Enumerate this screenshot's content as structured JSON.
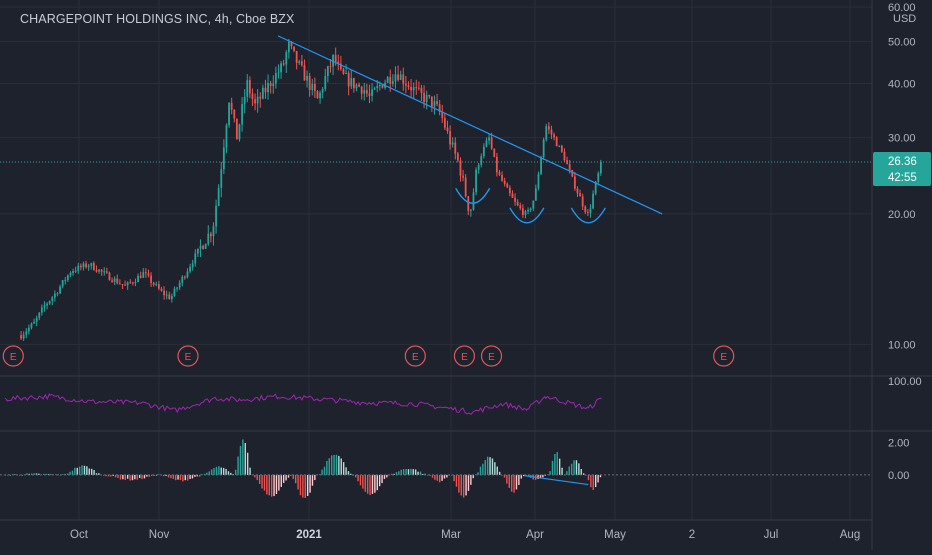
{
  "header": {
    "title": "CHARGEPOINT HOLDINGS INC, 4h, Cboe BZX",
    "currency": "USD"
  },
  "price_badge": {
    "price": "26.36",
    "countdown": "42:55"
  },
  "colors": {
    "background": "#1e222d",
    "grid": "#2a2e39",
    "bull": "#26a69a",
    "bear": "#ef5350",
    "trendline": "#2196f3",
    "rsi": "#9c27b0",
    "earnings": "#e0555a",
    "text": "#b2b5be",
    "badge": "#26a69a"
  },
  "chart_data": [
    {
      "type": "candlestick",
      "panel": "price",
      "y_scale": "log",
      "ylim": [
        8.5,
        61
      ],
      "y_ticks": [
        "60.00",
        "50.00",
        "40.00",
        "30.00",
        "20.00",
        "10.00"
      ],
      "y_tick_values": [
        60,
        50,
        40,
        30,
        20,
        10
      ],
      "x_ticks": [
        "Oct",
        "Nov",
        "2021",
        "Mar",
        "Apr",
        "May",
        "2",
        "Jul",
        "Aug"
      ],
      "last_price": 26.36,
      "price_path": [
        [
          "2020-09-09",
          10.5
        ],
        [
          "2020-09-14",
          11.2
        ],
        [
          "2020-09-18",
          12.3
        ],
        [
          "2020-09-22",
          13.1
        ],
        [
          "2020-09-28",
          14.8
        ],
        [
          "2020-10-05",
          15.3
        ],
        [
          "2020-10-12",
          14.4
        ],
        [
          "2020-10-19",
          13.6
        ],
        [
          "2020-10-26",
          14.6
        ],
        [
          "2020-11-02",
          13.2
        ],
        [
          "2020-11-06",
          12.8
        ],
        [
          "2020-11-11",
          14.2
        ],
        [
          "2020-11-16",
          15.8
        ],
        [
          "2020-11-20",
          17.2
        ],
        [
          "2020-11-24",
          18.5
        ],
        [
          "2020-11-27",
          24.0
        ],
        [
          "2020-12-01",
          37.0
        ],
        [
          "2020-12-04",
          30.0
        ],
        [
          "2020-12-08",
          40.0
        ],
        [
          "2020-12-11",
          35.5
        ],
        [
          "2020-12-15",
          38.5
        ],
        [
          "2020-12-18",
          41.0
        ],
        [
          "2020-12-22",
          44.0
        ],
        [
          "2020-12-24",
          49.0
        ],
        [
          "2020-12-28",
          44.0
        ],
        [
          "2020-12-31",
          41.0
        ],
        [
          "2021-01-05",
          36.5
        ],
        [
          "2021-01-08",
          41.0
        ],
        [
          "2021-01-12",
          46.0
        ],
        [
          "2021-01-15",
          42.0
        ],
        [
          "2021-01-20",
          40.0
        ],
        [
          "2021-01-25",
          39.0
        ],
        [
          "2021-01-28",
          37.0
        ],
        [
          "2021-02-02",
          40.0
        ],
        [
          "2021-02-08",
          42.5
        ],
        [
          "2021-02-11",
          40.5
        ],
        [
          "2021-02-16",
          38.0
        ],
        [
          "2021-02-22",
          36.0
        ],
        [
          "2021-02-25",
          34.0
        ],
        [
          "2021-03-01",
          29.0
        ],
        [
          "2021-03-04",
          26.0
        ],
        [
          "2021-03-08",
          20.0
        ],
        [
          "2021-03-11",
          26.5
        ],
        [
          "2021-03-15",
          30.0
        ],
        [
          "2021-03-18",
          25.0
        ],
        [
          "2021-03-22",
          22.5
        ],
        [
          "2021-03-25",
          21.0
        ],
        [
          "2021-03-29",
          19.8
        ],
        [
          "2021-04-01",
          22.0
        ],
        [
          "2021-04-05",
          32.0
        ],
        [
          "2021-04-08",
          30.0
        ],
        [
          "2021-04-12",
          27.0
        ],
        [
          "2021-04-15",
          24.0
        ],
        [
          "2021-04-19",
          21.0
        ],
        [
          "2021-04-21",
          19.8
        ],
        [
          "2021-04-23",
          22.5
        ],
        [
          "2021-04-26",
          26.36
        ]
      ],
      "trendline": [
        [
          "2020-12-20",
          51.5
        ],
        [
          "2021-05-20",
          20.0
        ]
      ],
      "patterns": [
        "2021-03-09",
        "2021-03-29",
        "2021-04-21"
      ],
      "earnings_markers": [
        "2020-09-03",
        "2020-11-10",
        "2021-02-12",
        "2021-03-03",
        "2021-03-13",
        "2021-06-10"
      ],
      "earnings_label": "E"
    },
    {
      "type": "line",
      "panel": "rsi",
      "y_ticks": [
        "100.00"
      ],
      "ylim": [
        0,
        100
      ],
      "series": [
        {
          "x": [
            "2020-09-03",
            "2020-09-20",
            "2020-10-05",
            "2020-10-25",
            "2020-11-08",
            "2020-11-25",
            "2020-12-05",
            "2020-12-20",
            "2021-01-05",
            "2021-01-25",
            "2021-02-15",
            "2021-03-01",
            "2021-03-09",
            "2021-03-20",
            "2021-03-29",
            "2021-04-05",
            "2021-04-21",
            "2021-04-26"
          ],
          "y": [
            66,
            72,
            60,
            57,
            40,
            68,
            64,
            72,
            66,
            58,
            55,
            44,
            36,
            55,
            42,
            72,
            44,
            68
          ]
        }
      ]
    },
    {
      "type": "bar",
      "panel": "macd",
      "y_ticks": [
        "2.00",
        "0.00"
      ],
      "ylim": [
        -2.8,
        2.6
      ],
      "x": [
        "2020-09-03",
        "2020-09-25",
        "2020-10-10",
        "2020-11-01",
        "2020-11-20",
        "2020-12-03",
        "2020-12-10",
        "2020-12-25",
        "2021-01-05",
        "2021-01-20",
        "2021-02-05",
        "2021-02-20",
        "2021-03-01",
        "2021-03-10",
        "2021-03-20",
        "2021-03-28",
        "2021-04-06",
        "2021-04-12",
        "2021-04-20",
        "2021-04-26"
      ],
      "values": [
        0.05,
        0.55,
        -0.3,
        -0.35,
        0.5,
        2.2,
        -1.3,
        -1.5,
        1.3,
        -1.2,
        0.4,
        -0.4,
        -1.4,
        1.1,
        -1.1,
        -0.3,
        1.4,
        0.9,
        -0.9,
        0.6
      ]
    }
  ]
}
